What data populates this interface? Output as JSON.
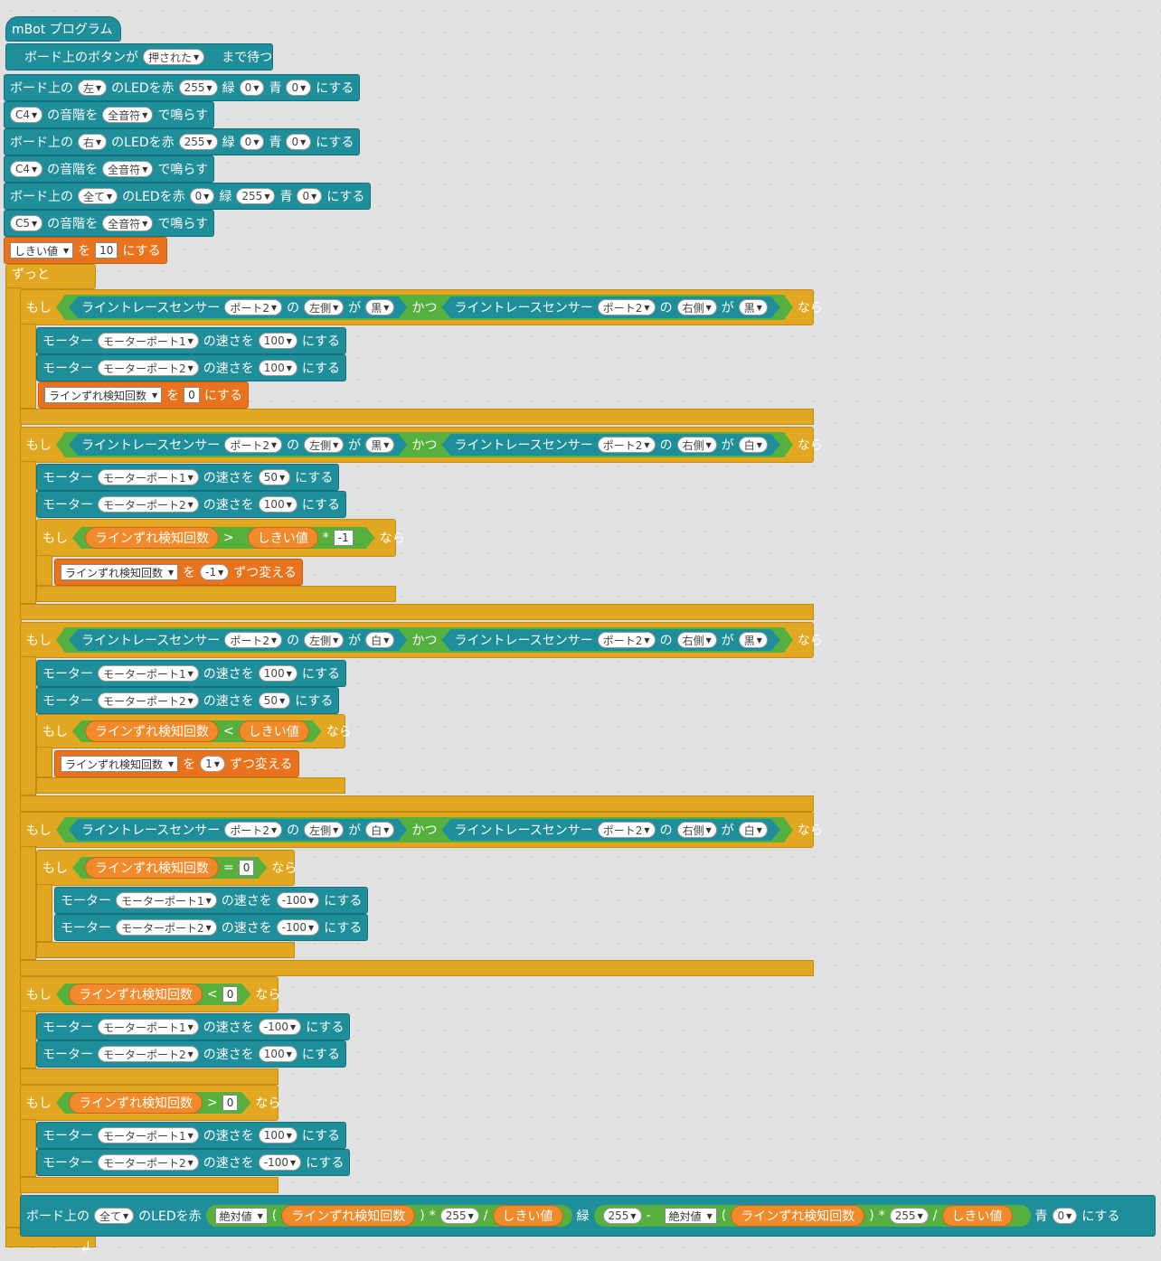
{
  "hat": {
    "label": "mBot プログラム"
  },
  "wait": {
    "prefix": "ボード上のボタンが",
    "state": "押された",
    "suffix": "まで待つ"
  },
  "led": {
    "prefix": "ボード上の",
    "mid": "のLEDを赤",
    "green": "緑",
    "blue": "青",
    "suffix": "にする",
    "rows": [
      {
        "pos": "左",
        "r": "255",
        "g": "0",
        "b": "0"
      },
      {
        "pos": "右",
        "r": "255",
        "g": "0",
        "b": "0"
      },
      {
        "pos": "全て",
        "r": "0",
        "g": "255",
        "b": "0"
      }
    ]
  },
  "tone": {
    "mid": "の音階を",
    "suffix": "で鳴らす",
    "rows": [
      {
        "note": "C4",
        "beat": "全音符"
      },
      {
        "note": "C4",
        "beat": "全音符"
      },
      {
        "note": "C5",
        "beat": "全音符"
      }
    ]
  },
  "setvar": {
    "name": "しきい値",
    "wo": "を",
    "value": "10",
    "suffix": "にする"
  },
  "forever": "ずっと",
  "kw": {
    "if": "もし",
    "then": "なら",
    "and": "かつ",
    "no": "の",
    "ga": "が"
  },
  "sensor": {
    "label": "ライントレースセンサー",
    "port": "ポート2",
    "left": "左側",
    "right": "右側",
    "black": "黒",
    "white": "白"
  },
  "motor": {
    "label": "モーター",
    "port1": "モーターポート1",
    "port2": "モーターポート2",
    "speed": "の速さを",
    "suffix": "にする"
  },
  "vars": {
    "count": "ラインずれ検知回数",
    "thr": "しきい値",
    "change": "ずつ変える",
    "abs": "絶対値"
  },
  "if1": {
    "s1": "黒",
    "s2": "黒",
    "m1": "100",
    "m2": "100",
    "setv": "0"
  },
  "if2": {
    "s1": "黒",
    "s2": "白",
    "m1": "50",
    "m2": "100",
    "op": ">",
    "mul": "*",
    "neg": "-1",
    "change": "-1"
  },
  "if3": {
    "s1": "白",
    "s2": "黒",
    "m1": "100",
    "m2": "50",
    "op": "<",
    "change": "1"
  },
  "if4": {
    "s1": "白",
    "s2": "白",
    "op": "=",
    "cmp": "0",
    "m1": "-100",
    "m2": "-100"
  },
  "if5": {
    "op": "<",
    "cmp": "0",
    "m1": "-100",
    "m2": "100"
  },
  "if6": {
    "op": ">",
    "cmp": "0",
    "m1": "100",
    "m2": "-100"
  },
  "final": {
    "prefix": "ボード上の",
    "pos": "全て",
    "mid": "のLEDを赤",
    "lp": "(",
    "rp": ")",
    "mul": "*",
    "v255": "255",
    "div": "/",
    "green": "緑",
    "minus": "-",
    "blue": "青",
    "bval": "0",
    "suffix": "にする"
  },
  "loop_icon": "loop-arrow-icon"
}
